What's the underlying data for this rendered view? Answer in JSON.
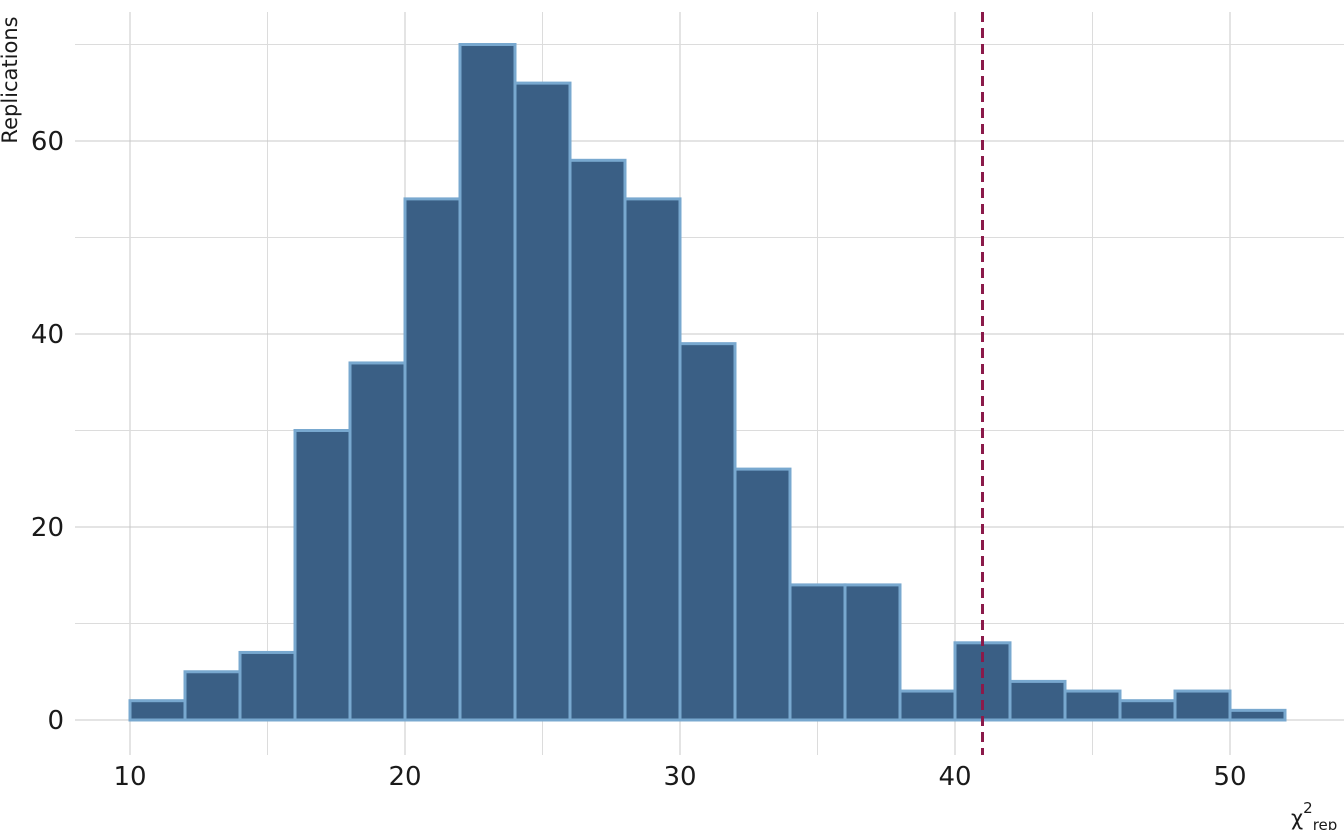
{
  "chart_data": {
    "type": "bar",
    "subtype": "histogram",
    "bin_width": 2,
    "bins": [
      {
        "x0": 10,
        "x1": 12,
        "count": 2
      },
      {
        "x0": 12,
        "x1": 14,
        "count": 5
      },
      {
        "x0": 14,
        "x1": 16,
        "count": 7
      },
      {
        "x0": 16,
        "x1": 18,
        "count": 30
      },
      {
        "x0": 18,
        "x1": 20,
        "count": 37
      },
      {
        "x0": 20,
        "x1": 22,
        "count": 54
      },
      {
        "x0": 22,
        "x1": 24,
        "count": 70
      },
      {
        "x0": 24,
        "x1": 26,
        "count": 66
      },
      {
        "x0": 26,
        "x1": 28,
        "count": 58
      },
      {
        "x0": 28,
        "x1": 30,
        "count": 54
      },
      {
        "x0": 30,
        "x1": 32,
        "count": 39
      },
      {
        "x0": 32,
        "x1": 34,
        "count": 26
      },
      {
        "x0": 34,
        "x1": 36,
        "count": 14
      },
      {
        "x0": 36,
        "x1": 38,
        "count": 14
      },
      {
        "x0": 38,
        "x1": 40,
        "count": 3
      },
      {
        "x0": 40,
        "x1": 42,
        "count": 8
      },
      {
        "x0": 42,
        "x1": 44,
        "count": 4
      },
      {
        "x0": 44,
        "x1": 46,
        "count": 3
      },
      {
        "x0": 46,
        "x1": 48,
        "count": 2
      },
      {
        "x0": 48,
        "x1": 50,
        "count": 3
      },
      {
        "x0": 50,
        "x1": 52,
        "count": 1
      }
    ],
    "reference_line": {
      "x": 41,
      "style": "dashed",
      "color": "#8b1a4a"
    },
    "xlabel": "χ",
    "xlabel_sup": "2",
    "xlabel_sub": "rep",
    "ylabel": "Replications",
    "xlim": [
      8,
      57
    ],
    "ylim": [
      -3.5,
      73.5
    ],
    "x_ticks": [
      10,
      20,
      30,
      40,
      50
    ],
    "y_ticks": [
      0,
      20,
      40,
      60
    ],
    "grid": true,
    "colors": {
      "bar_fill": "#3a5f85",
      "bar_stroke": "#78a8cf"
    }
  }
}
